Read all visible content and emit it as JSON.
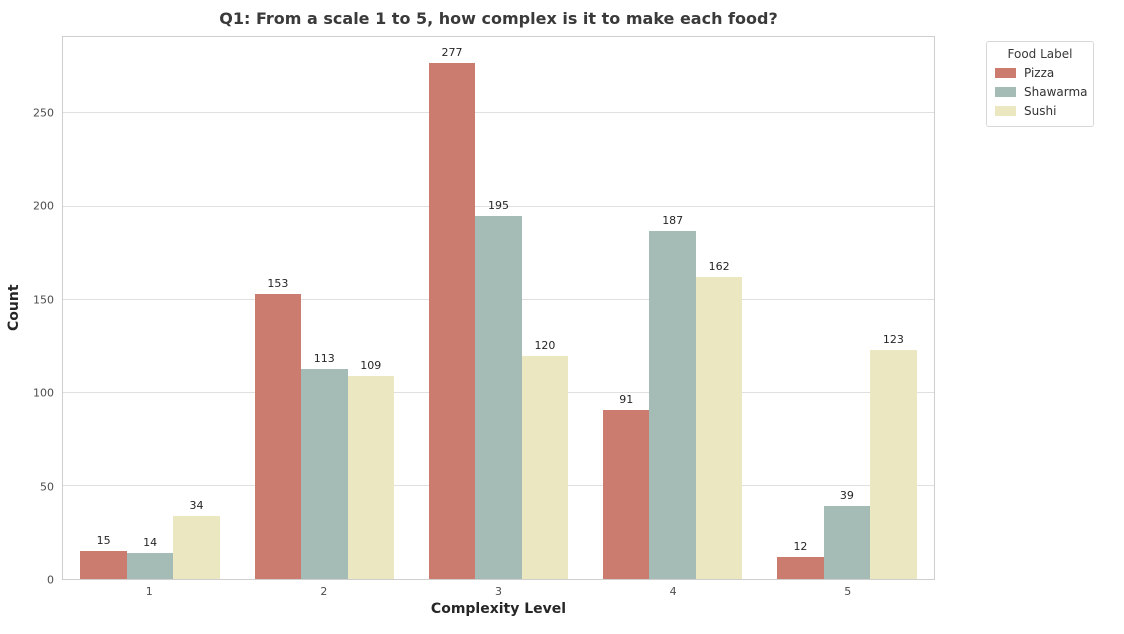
{
  "chart_data": {
    "type": "bar",
    "title": "Q1: From a scale 1 to 5, how complex is it to make each food?",
    "xlabel": "Complexity Level",
    "ylabel": "Count",
    "categories": [
      "1",
      "2",
      "3",
      "4",
      "5"
    ],
    "series": [
      {
        "name": "Pizza",
        "color": "#cb7c6f",
        "values": [
          15,
          153,
          277,
          91,
          12
        ]
      },
      {
        "name": "Shawarma",
        "color": "#a5bcb6",
        "values": [
          14,
          113,
          195,
          187,
          39
        ]
      },
      {
        "name": "Sushi",
        "color": "#ebe8c1",
        "values": [
          34,
          109,
          120,
          162,
          123
        ]
      }
    ],
    "yticks": [
      0,
      50,
      100,
      150,
      200,
      250
    ],
    "ylim": [
      0,
      291
    ],
    "grid": "horizontal",
    "bar_value_labels": true,
    "group_width_fraction": 0.8,
    "legend": {
      "title": "Food Label",
      "position": "outside-upper-right"
    }
  }
}
